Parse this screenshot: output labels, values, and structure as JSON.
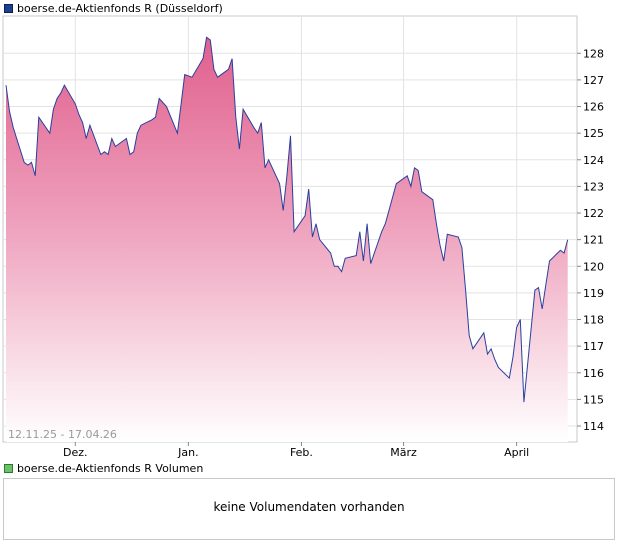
{
  "legend": {
    "price": "boerse.de-Aktienfonds R (Düsseldorf)",
    "volume": "boerse.de-Aktienfonds R Volumen"
  },
  "date_range": "12.11.25 - 17.04.26",
  "volume_panel": {
    "message": "keine Volumendaten vorhanden"
  },
  "colors": {
    "line": "#2a3f9e",
    "area_top": "#e0608d",
    "area_bottom": "#ffffff",
    "grid": "#e3e3e3",
    "volume_swatch": "#6bc06b"
  },
  "chart_data": {
    "type": "area",
    "ylim": [
      113.4,
      129.4
    ],
    "yticks": [
      114,
      115,
      116,
      117,
      118,
      119,
      120,
      121,
      122,
      123,
      124,
      125,
      126,
      127,
      128
    ],
    "x_labels": [
      "Dez.",
      "Jan.",
      "Feb.",
      "März",
      "April"
    ],
    "x_label_dates": [
      "2025-12-01",
      "2026-01-01",
      "2026-02-01",
      "2026-03-01",
      "2026-04-01"
    ],
    "xlim": [
      "2025-11-12",
      "2026-04-17"
    ],
    "grid": true,
    "series": [
      {
        "values": [
          [
            "2025-11-12",
            126.8
          ],
          [
            "2025-11-13",
            125.8
          ],
          [
            "2025-11-14",
            125.2
          ],
          [
            "2025-11-17",
            123.9
          ],
          [
            "2025-11-18",
            123.8
          ],
          [
            "2025-11-19",
            123.9
          ],
          [
            "2025-11-20",
            123.4
          ],
          [
            "2025-11-21",
            125.6
          ],
          [
            "2025-11-24",
            125.0
          ],
          [
            "2025-11-25",
            125.9
          ],
          [
            "2025-11-26",
            126.3
          ],
          [
            "2025-11-27",
            126.5
          ],
          [
            "2025-11-28",
            126.8
          ],
          [
            "2025-12-01",
            126.1
          ],
          [
            "2025-12-02",
            125.7
          ],
          [
            "2025-12-03",
            125.4
          ],
          [
            "2025-12-04",
            124.8
          ],
          [
            "2025-12-05",
            125.3
          ],
          [
            "2025-12-08",
            124.2
          ],
          [
            "2025-12-09",
            124.3
          ],
          [
            "2025-12-10",
            124.2
          ],
          [
            "2025-12-11",
            124.8
          ],
          [
            "2025-12-12",
            124.5
          ],
          [
            "2025-12-15",
            124.8
          ],
          [
            "2025-12-16",
            124.2
          ],
          [
            "2025-12-17",
            124.3
          ],
          [
            "2025-12-18",
            125.0
          ],
          [
            "2025-12-19",
            125.3
          ],
          [
            "2025-12-22",
            125.5
          ],
          [
            "2025-12-23",
            125.6
          ],
          [
            "2025-12-24",
            126.3
          ],
          [
            "2025-12-26",
            126.0
          ],
          [
            "2025-12-29",
            125.0
          ],
          [
            "2025-12-30",
            126.1
          ],
          [
            "2025-12-31",
            127.2
          ],
          [
            "2026-01-02",
            127.1
          ],
          [
            "2026-01-05",
            127.8
          ],
          [
            "2026-01-06",
            128.6
          ],
          [
            "2026-01-07",
            128.5
          ],
          [
            "2026-01-08",
            127.4
          ],
          [
            "2026-01-09",
            127.1
          ],
          [
            "2026-01-12",
            127.4
          ],
          [
            "2026-01-13",
            127.8
          ],
          [
            "2026-01-14",
            125.6
          ],
          [
            "2026-01-15",
            124.4
          ],
          [
            "2026-01-16",
            125.9
          ],
          [
            "2026-01-19",
            125.2
          ],
          [
            "2026-01-20",
            125.0
          ],
          [
            "2026-01-21",
            125.4
          ],
          [
            "2026-01-22",
            123.7
          ],
          [
            "2026-01-23",
            124.0
          ],
          [
            "2026-01-26",
            123.1
          ],
          [
            "2026-01-27",
            122.1
          ],
          [
            "2026-01-28",
            123.4
          ],
          [
            "2026-01-29",
            124.9
          ],
          [
            "2026-01-30",
            121.3
          ],
          [
            "2026-02-02",
            121.9
          ],
          [
            "2026-02-03",
            122.9
          ],
          [
            "2026-02-04",
            121.1
          ],
          [
            "2026-02-05",
            121.6
          ],
          [
            "2026-02-06",
            121.0
          ],
          [
            "2026-02-09",
            120.5
          ],
          [
            "2026-02-10",
            120.0
          ],
          [
            "2026-02-11",
            120.0
          ],
          [
            "2026-02-12",
            119.8
          ],
          [
            "2026-02-13",
            120.3
          ],
          [
            "2026-02-16",
            120.4
          ],
          [
            "2026-02-17",
            121.3
          ],
          [
            "2026-02-18",
            120.2
          ],
          [
            "2026-02-19",
            121.6
          ],
          [
            "2026-02-20",
            120.1
          ],
          [
            "2026-02-23",
            121.3
          ],
          [
            "2026-02-24",
            121.6
          ],
          [
            "2026-02-25",
            122.1
          ],
          [
            "2026-02-26",
            122.6
          ],
          [
            "2026-02-27",
            123.1
          ],
          [
            "2026-03-02",
            123.4
          ],
          [
            "2026-03-03",
            123.0
          ],
          [
            "2026-03-04",
            123.7
          ],
          [
            "2026-03-05",
            123.6
          ],
          [
            "2026-03-06",
            122.8
          ],
          [
            "2026-03-09",
            122.5
          ],
          [
            "2026-03-10",
            121.6
          ],
          [
            "2026-03-11",
            120.8
          ],
          [
            "2026-03-12",
            120.2
          ],
          [
            "2026-03-13",
            121.2
          ],
          [
            "2026-03-16",
            121.1
          ],
          [
            "2026-03-17",
            120.7
          ],
          [
            "2026-03-18",
            119.1
          ],
          [
            "2026-03-19",
            117.4
          ],
          [
            "2026-03-20",
            116.9
          ],
          [
            "2026-03-23",
            117.5
          ],
          [
            "2026-03-24",
            116.7
          ],
          [
            "2026-03-25",
            116.9
          ],
          [
            "2026-03-26",
            116.5
          ],
          [
            "2026-03-27",
            116.2
          ],
          [
            "2026-03-30",
            115.8
          ],
          [
            "2026-03-31",
            116.6
          ],
          [
            "2026-04-01",
            117.7
          ],
          [
            "2026-04-02",
            118.0
          ],
          [
            "2026-04-03",
            114.9
          ],
          [
            "2026-04-06",
            119.1
          ],
          [
            "2026-04-07",
            119.2
          ],
          [
            "2026-04-08",
            118.4
          ],
          [
            "2026-04-09",
            119.3
          ],
          [
            "2026-04-10",
            120.2
          ],
          [
            "2026-04-13",
            120.6
          ],
          [
            "2026-04-14",
            120.5
          ],
          [
            "2026-04-15",
            121.0
          ]
        ]
      }
    ]
  }
}
